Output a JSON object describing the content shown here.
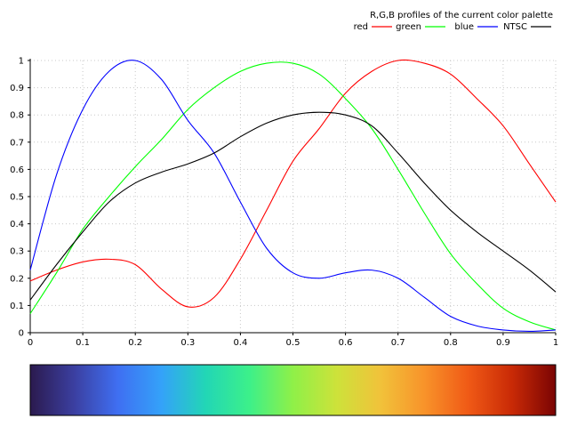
{
  "chart_data": {
    "type": "line",
    "title": "R,G,B profiles of the current color palette",
    "xlabel": "",
    "ylabel": "",
    "xlim": [
      0,
      1
    ],
    "ylim": [
      0,
      1
    ],
    "grid": true,
    "legend_position": "top-right",
    "x_ticks": [
      "0",
      "0.1",
      "0.2",
      "0.3",
      "0.4",
      "0.5",
      "0.6",
      "0.7",
      "0.8",
      "0.9",
      "1"
    ],
    "y_ticks": [
      "0",
      "0.1",
      "0.2",
      "0.3",
      "0.4",
      "0.5",
      "0.6",
      "0.7",
      "0.8",
      "0.9",
      "1"
    ],
    "series": [
      {
        "name": "red",
        "color": "#ff0000",
        "x": [
          0,
          0.05,
          0.1,
          0.15,
          0.2,
          0.25,
          0.3,
          0.35,
          0.4,
          0.45,
          0.5,
          0.55,
          0.6,
          0.65,
          0.7,
          0.75,
          0.8,
          0.85,
          0.9,
          0.95,
          1
        ],
        "y": [
          0.19,
          0.23,
          0.26,
          0.27,
          0.25,
          0.16,
          0.095,
          0.13,
          0.27,
          0.45,
          0.63,
          0.75,
          0.88,
          0.96,
          1.0,
          0.99,
          0.95,
          0.86,
          0.76,
          0.62,
          0.48
        ]
      },
      {
        "name": "green",
        "color": "#00ff00",
        "x": [
          0,
          0.05,
          0.1,
          0.15,
          0.2,
          0.25,
          0.3,
          0.35,
          0.4,
          0.45,
          0.5,
          0.55,
          0.6,
          0.65,
          0.7,
          0.75,
          0.8,
          0.85,
          0.9,
          0.95,
          1
        ],
        "y": [
          0.07,
          0.22,
          0.38,
          0.5,
          0.61,
          0.71,
          0.82,
          0.9,
          0.96,
          0.99,
          0.99,
          0.95,
          0.86,
          0.75,
          0.6,
          0.44,
          0.29,
          0.18,
          0.09,
          0.04,
          0.01
        ]
      },
      {
        "name": "blue",
        "color": "#0000ff",
        "x": [
          0,
          0.05,
          0.1,
          0.15,
          0.2,
          0.25,
          0.3,
          0.35,
          0.4,
          0.45,
          0.5,
          0.55,
          0.6,
          0.65,
          0.7,
          0.75,
          0.8,
          0.85,
          0.9,
          0.95,
          1
        ],
        "y": [
          0.23,
          0.58,
          0.82,
          0.96,
          1.0,
          0.93,
          0.78,
          0.66,
          0.48,
          0.31,
          0.22,
          0.2,
          0.22,
          0.23,
          0.2,
          0.13,
          0.06,
          0.025,
          0.01,
          0.005,
          0.01
        ]
      },
      {
        "name": "NTSC",
        "color": "#000000",
        "x": [
          0,
          0.05,
          0.1,
          0.15,
          0.2,
          0.25,
          0.3,
          0.35,
          0.4,
          0.45,
          0.5,
          0.55,
          0.6,
          0.65,
          0.7,
          0.75,
          0.8,
          0.85,
          0.9,
          0.95,
          1
        ],
        "y": [
          0.12,
          0.25,
          0.37,
          0.48,
          0.55,
          0.59,
          0.62,
          0.66,
          0.72,
          0.77,
          0.8,
          0.81,
          0.8,
          0.76,
          0.66,
          0.55,
          0.45,
          0.37,
          0.3,
          0.23,
          0.15
        ]
      }
    ],
    "colorbar": {
      "stops": [
        "#2b1a4e",
        "#3b3fa0",
        "#3f6ff2",
        "#34a2f9",
        "#22d6b6",
        "#3cf08a",
        "#8ff048",
        "#cde23a",
        "#f1c23a",
        "#f8932a",
        "#f05a16",
        "#c92a06",
        "#7a0403"
      ]
    }
  }
}
